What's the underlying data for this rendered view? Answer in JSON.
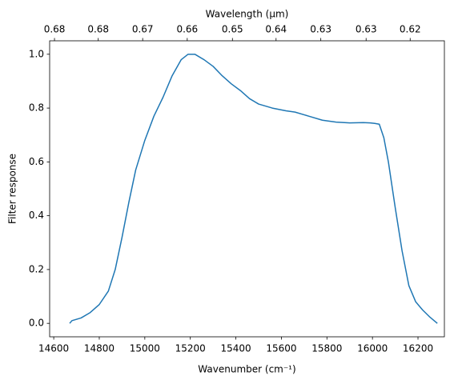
{
  "chart_data": {
    "type": "line",
    "xlabel": "Wavenumber (cm⁻¹)",
    "ylabel": "Filter response",
    "x2label": "Wavelength (μm)",
    "x": [
      14670,
      14680,
      14720,
      14760,
      14800,
      14840,
      14870,
      14900,
      14930,
      14960,
      15000,
      15040,
      15080,
      15120,
      15160,
      15190,
      15220,
      15260,
      15300,
      15340,
      15380,
      15420,
      15460,
      15500,
      15560,
      15620,
      15660,
      15720,
      15780,
      15840,
      15900,
      15960,
      15990,
      16010,
      16030,
      16050,
      16070,
      16100,
      16130,
      16160,
      16190,
      16220,
      16250,
      16285
    ],
    "series": [
      {
        "color": "#1f77b4",
        "values": [
          0.0,
          0.01,
          0.02,
          0.04,
          0.07,
          0.12,
          0.2,
          0.32,
          0.45,
          0.57,
          0.68,
          0.77,
          0.84,
          0.92,
          0.98,
          1.0,
          1.0,
          0.98,
          0.955,
          0.92,
          0.89,
          0.865,
          0.835,
          0.815,
          0.8,
          0.79,
          0.785,
          0.77,
          0.755,
          0.748,
          0.745,
          0.746,
          0.745,
          0.743,
          0.74,
          0.69,
          0.6,
          0.43,
          0.27,
          0.14,
          0.08,
          0.05,
          0.025,
          0.0
        ]
      }
    ],
    "xlim": [
      14582,
      16316
    ],
    "xticks": [
      14600,
      14800,
      15000,
      15200,
      15400,
      15600,
      15800,
      16000,
      16200
    ],
    "ylim": [
      -0.05,
      1.05
    ],
    "yticks": [
      {
        "value": 0,
        "label": "0.0"
      },
      0.2,
      0.4,
      0.6,
      0.8,
      {
        "value": 1,
        "label": "1.0"
      }
    ],
    "x2lim": [
      0.6858,
      0.6129
    ],
    "x2ticks": [
      {
        "value": 0.6848,
        "label": "0.68"
      },
      {
        "value": 0.6759,
        "label": "0.68"
      },
      {
        "value": 0.6671,
        "label": "0.67"
      },
      {
        "value": 0.6585,
        "label": "0.66"
      },
      {
        "value": 0.65,
        "label": "0.65"
      },
      {
        "value": 0.642,
        "label": "0.64"
      },
      {
        "value": 0.634,
        "label": "0.63"
      },
      {
        "value": 0.6261,
        "label": "0.63"
      },
      {
        "value": 0.6186,
        "label": "0.62"
      }
    ],
    "grid": false
  }
}
